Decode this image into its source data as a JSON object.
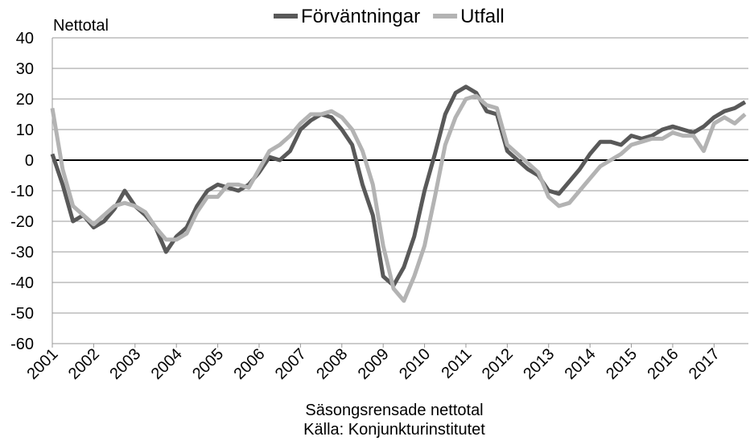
{
  "chart_data": {
    "type": "line",
    "y_label": "Nettotal",
    "x_label": "Säsongsrensade nettotal",
    "source": "Källa: Konjunkturinstitutet",
    "x": [
      2001,
      2001.25,
      2001.5,
      2001.75,
      2002,
      2002.25,
      2002.5,
      2002.75,
      2003,
      2003.25,
      2003.5,
      2003.75,
      2004,
      2004.25,
      2004.5,
      2004.75,
      2005,
      2005.25,
      2005.5,
      2005.75,
      2006,
      2006.25,
      2006.5,
      2006.75,
      2007,
      2007.25,
      2007.5,
      2007.75,
      2008,
      2008.25,
      2008.5,
      2008.75,
      2009,
      2009.25,
      2009.5,
      2009.75,
      2010,
      2010.25,
      2010.5,
      2010.75,
      2011,
      2011.25,
      2011.5,
      2011.75,
      2012,
      2012.25,
      2012.5,
      2012.75,
      2013,
      2013.25,
      2013.5,
      2013.75,
      2014,
      2014.25,
      2014.5,
      2014.75,
      2015,
      2015.25,
      2015.5,
      2015.75,
      2016,
      2016.25,
      2016.5,
      2016.75,
      2017,
      2017.25,
      2017.5,
      2017.75
    ],
    "series": [
      {
        "name": "Förväntningar",
        "color": "#595959",
        "values": [
          2,
          -8,
          -20,
          -18,
          -22,
          -20,
          -16,
          -10,
          -15,
          -18,
          -22,
          -30,
          -25,
          -22,
          -15,
          -10,
          -8,
          -9,
          -10,
          -8,
          -4,
          1,
          0,
          3,
          10,
          13,
          15,
          14,
          10,
          5,
          -8,
          -18,
          -38,
          -41,
          -35,
          -25,
          -10,
          2,
          15,
          22,
          24,
          22,
          16,
          15,
          3,
          0,
          -3,
          -5,
          -10,
          -11,
          -7,
          -3,
          2,
          6,
          6,
          5,
          8,
          7,
          8,
          10,
          11,
          10,
          9,
          11,
          14,
          16,
          17,
          19
        ]
      },
      {
        "name": "Utfall",
        "color": "#b3b3b3",
        "values": [
          17,
          -3,
          -15,
          -18,
          -21,
          -18,
          -15,
          -14,
          -15,
          -17,
          -22,
          -26,
          -26,
          -24,
          -17,
          -12,
          -12,
          -8,
          -8,
          -9,
          -3,
          3,
          5,
          8,
          12,
          15,
          15,
          16,
          14,
          10,
          3,
          -8,
          -28,
          -42,
          -46,
          -38,
          -28,
          -12,
          5,
          14,
          20,
          21,
          18,
          17,
          5,
          2,
          -1,
          -4,
          -12,
          -15,
          -14,
          -10,
          -6,
          -2,
          0,
          2,
          5,
          6,
          7,
          7,
          9,
          8,
          8,
          3,
          12,
          14,
          12,
          15
        ]
      }
    ],
    "xlim": [
      2001,
      2017.83
    ],
    "xticks": [
      2001,
      2002,
      2003,
      2004,
      2005,
      2006,
      2007,
      2008,
      2009,
      2010,
      2011,
      2012,
      2013,
      2014,
      2015,
      2016,
      2017
    ],
    "ylim": [
      -60,
      40
    ],
    "yticks": [
      -60,
      -50,
      -40,
      -30,
      -20,
      -10,
      0,
      10,
      20,
      30,
      40
    ],
    "grid": true,
    "legend": "top"
  }
}
